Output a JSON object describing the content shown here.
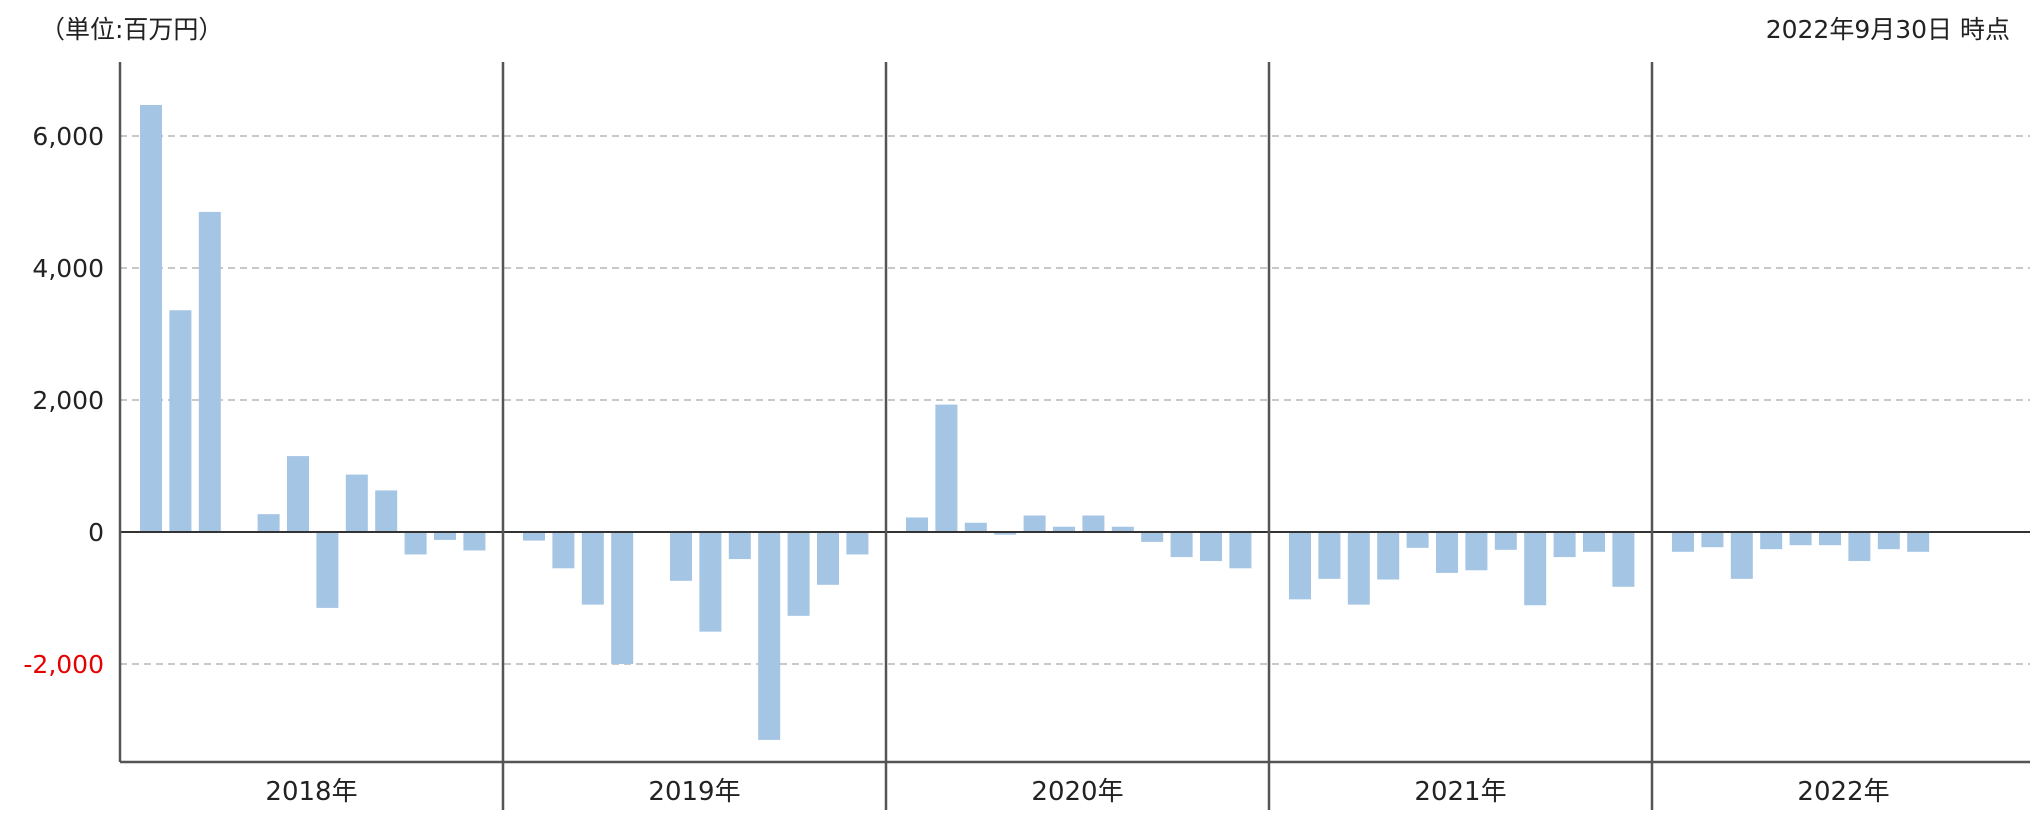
{
  "header": {
    "unit": "（単位:百万円）",
    "as_of": "2022年9月30日 時点"
  },
  "colors": {
    "bar": "#a5c5e4",
    "negative_tick": "#e60000",
    "axis": "#555555",
    "grid": "#c8c8c8"
  },
  "chart_data": {
    "type": "bar",
    "ylim": [
      -3400,
      7000
    ],
    "yticks": [
      6000,
      4000,
      2000,
      0,
      -2000
    ],
    "ytick_labels": [
      "6,000",
      "4,000",
      "2,000",
      "0",
      "-2,000"
    ],
    "grid": "dashed-horizontal",
    "groups": [
      {
        "label": "2018年",
        "values": [
          6470,
          3360,
          4850,
          null,
          270,
          1150,
          -1150,
          870,
          630,
          -340,
          -120,
          -280
        ]
      },
      {
        "label": "2019年",
        "values": [
          -130,
          -550,
          -1100,
          -2000,
          null,
          -740,
          -1510,
          -410,
          -3150,
          -1270,
          -800,
          -340
        ]
      },
      {
        "label": "2020年",
        "values": [
          220,
          1930,
          140,
          -40,
          250,
          80,
          250,
          80,
          -150,
          -380,
          -440,
          -550
        ]
      },
      {
        "label": "2021年",
        "values": [
          -1020,
          -710,
          -1100,
          -720,
          -240,
          -620,
          -580,
          -270,
          -1110,
          -380,
          -300,
          -830
        ]
      },
      {
        "label": "2022年",
        "values": [
          -300,
          -230,
          -710,
          -260,
          -200,
          -200,
          -440,
          -260,
          -300
        ]
      }
    ]
  }
}
